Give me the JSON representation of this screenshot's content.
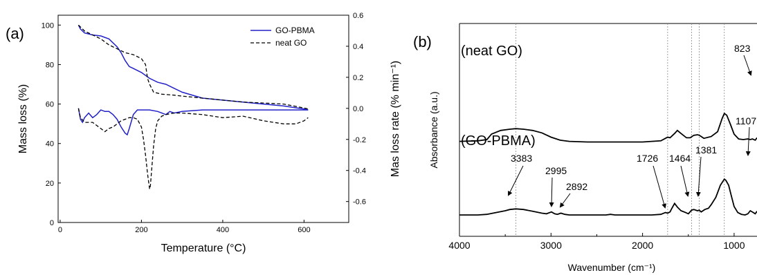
{
  "chart_data": [
    {
      "type": "line",
      "panel_label": "(a)",
      "xlabel": "Temperature (°C)",
      "ylabel": "Mass loss (%)",
      "y2label": "Mas loss rate (% min⁻¹)",
      "xlim": [
        -5,
        710
      ],
      "ylim": [
        0,
        105
      ],
      "y2lim": [
        -0.735,
        0.6
      ],
      "xticks": [
        "0",
        "200",
        "400",
        "600"
      ],
      "yticks": [
        "0",
        "20",
        "40",
        "60",
        "80",
        "100"
      ],
      "y2ticks": [
        "0.6",
        "0.4",
        "0.2",
        "0.0",
        "-0.2",
        "-0.4",
        "-0.6"
      ],
      "legend_position": "top-right",
      "colors": {
        "gopbma": "#2020c8",
        "neatgo": "#000000"
      },
      "series": [
        {
          "name": "GO-PBMA",
          "axis": "left",
          "style": "solid",
          "x": [
            45,
            50,
            60,
            80,
            100,
            120,
            140,
            150,
            160,
            170,
            180,
            200,
            220,
            240,
            260,
            280,
            300,
            350,
            400,
            450,
            500,
            550,
            600,
            610
          ],
          "y": [
            100,
            98,
            96,
            95,
            94.5,
            93,
            89,
            86,
            82,
            79,
            78,
            76,
            73,
            71,
            70,
            68,
            66,
            63,
            62,
            61,
            60,
            59,
            57.5,
            57
          ]
        },
        {
          "name": "neat GO",
          "axis": "left",
          "style": "dashed",
          "x": [
            45,
            50,
            60,
            80,
            100,
            120,
            140,
            160,
            180,
            200,
            210,
            215,
            220,
            230,
            250,
            280,
            300,
            350,
            400,
            450,
            500,
            550,
            600,
            610
          ],
          "y": [
            100,
            99,
            97,
            95,
            93,
            90,
            88,
            86,
            85,
            83,
            80,
            73,
            70,
            66,
            65,
            64.5,
            64,
            63,
            62,
            61,
            60.5,
            60,
            58,
            57.5
          ]
        },
        {
          "axis": "right",
          "style": "solid",
          "x": [
            45,
            50,
            55,
            60,
            70,
            80,
            90,
            100,
            110,
            120,
            130,
            140,
            150,
            160,
            165,
            170,
            180,
            190,
            200,
            220,
            240,
            260,
            270,
            280,
            300,
            350,
            400,
            450,
            500,
            550,
            600,
            610
          ],
          "y": [
            0.0,
            -0.07,
            -0.09,
            -0.06,
            -0.03,
            -0.06,
            -0.04,
            -0.01,
            -0.02,
            -0.02,
            -0.04,
            -0.07,
            -0.12,
            -0.16,
            -0.17,
            -0.13,
            -0.04,
            -0.01,
            -0.01,
            -0.01,
            -0.02,
            -0.04,
            -0.02,
            -0.03,
            -0.02,
            -0.01,
            -0.01,
            -0.01,
            -0.01,
            -0.01,
            -0.01,
            -0.01
          ]
        },
        {
          "axis": "right",
          "style": "dashed",
          "x": [
            45,
            50,
            60,
            70,
            80,
            90,
            100,
            110,
            120,
            130,
            140,
            150,
            160,
            170,
            180,
            190,
            200,
            205,
            210,
            215,
            220,
            222,
            225,
            230,
            235,
            240,
            250,
            260,
            280,
            300,
            350,
            400,
            450,
            500,
            550,
            580,
            600,
            610
          ],
          "y": [
            0.0,
            -0.06,
            -0.09,
            -0.09,
            -0.09,
            -0.11,
            -0.13,
            -0.15,
            -0.13,
            -0.12,
            -0.1,
            -0.08,
            -0.07,
            -0.06,
            -0.06,
            -0.07,
            -0.12,
            -0.2,
            -0.3,
            -0.42,
            -0.52,
            -0.5,
            -0.4,
            -0.24,
            -0.13,
            -0.08,
            -0.05,
            -0.04,
            -0.03,
            -0.03,
            -0.04,
            -0.06,
            -0.05,
            -0.08,
            -0.1,
            -0.1,
            -0.08,
            -0.06
          ]
        }
      ]
    },
    {
      "type": "line",
      "panel_label": "(b)",
      "xlabel": "Wavenumber (cm⁻¹)",
      "ylabel": "Absorbance (a.u.)",
      "xlim": [
        4000,
        750
      ],
      "xticks": [
        "4000",
        "3000",
        "2000",
        "1000"
      ],
      "reference_lines": [
        3383,
        1726,
        1464,
        1381,
        1107
      ],
      "spectrum_labels": [
        "(neat GO)",
        "(GO-PBMA)"
      ],
      "peak_labels": [
        "823",
        "1107",
        "3383",
        "2995",
        "2892",
        "1726",
        "1464",
        "1381"
      ],
      "series": [
        {
          "name": "neat GO",
          "offset": 1.2,
          "x": [
            4000,
            3800,
            3700,
            3650,
            3550,
            3450,
            3383,
            3300,
            3200,
            3100,
            3000,
            2900,
            2800,
            2600,
            2400,
            2200,
            2000,
            1900,
            1800,
            1750,
            1726,
            1700,
            1650,
            1620,
            1580,
            1520,
            1480,
            1440,
            1400,
            1380,
            1330,
            1250,
            1180,
            1130,
            1107,
            1080,
            1040,
            1000,
            950,
            900,
            850,
            823,
            800,
            770,
            750
          ],
          "y": [
            0.02,
            0.03,
            0.05,
            0.14,
            0.2,
            0.22,
            0.23,
            0.22,
            0.2,
            0.16,
            0.09,
            0.04,
            0.02,
            0.01,
            0.01,
            0.01,
            0.01,
            0.02,
            0.03,
            0.07,
            0.09,
            0.08,
            0.15,
            0.2,
            0.15,
            0.08,
            0.08,
            0.12,
            0.13,
            0.12,
            0.07,
            0.1,
            0.18,
            0.4,
            0.48,
            0.45,
            0.3,
            0.14,
            0.06,
            0.05,
            0.06,
            0.05,
            0.06,
            0.04,
            0.08
          ]
        },
        {
          "name": "GO-PBMA",
          "offset": 0.0,
          "x": [
            4000,
            3800,
            3700,
            3600,
            3500,
            3450,
            3383,
            3300,
            3200,
            3100,
            3050,
            2995,
            2960,
            2930,
            2892,
            2850,
            2800,
            2600,
            2400,
            2350,
            2300,
            2100,
            2000,
            1900,
            1800,
            1750,
            1726,
            1700,
            1680,
            1650,
            1620,
            1580,
            1530,
            1500,
            1464,
            1440,
            1400,
            1381,
            1360,
            1320,
            1280,
            1250,
            1200,
            1150,
            1107,
            1090,
            1060,
            1030,
            1000,
            960,
            920,
            880,
            850,
            823,
            790,
            770,
            750
          ],
          "y": [
            0.01,
            0.01,
            0.02,
            0.05,
            0.08,
            0.1,
            0.11,
            0.1,
            0.07,
            0.04,
            0.03,
            0.06,
            0.03,
            0.02,
            0.04,
            0.02,
            0.01,
            0.01,
            0.01,
            0.02,
            0.01,
            0.01,
            0.01,
            0.01,
            0.02,
            0.05,
            0.04,
            0.06,
            0.12,
            0.2,
            0.14,
            0.08,
            0.05,
            0.03,
            0.09,
            0.1,
            0.08,
            0.09,
            0.06,
            0.1,
            0.12,
            0.18,
            0.3,
            0.5,
            0.6,
            0.58,
            0.5,
            0.32,
            0.15,
            0.05,
            0.02,
            0.01,
            0.03,
            0.08,
            0.05,
            0.03,
            0.07
          ]
        }
      ]
    }
  ]
}
